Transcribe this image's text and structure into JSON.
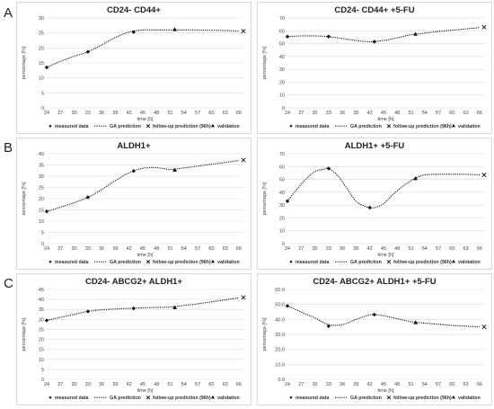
{
  "panels": [
    {
      "letter": "A"
    },
    {
      "letter": "B"
    },
    {
      "letter": "C"
    }
  ],
  "legend": {
    "measured": "measured data",
    "ga": "GA prediction",
    "followup": "follow-up prediction (96h)",
    "validation": "validation"
  },
  "chart_data": [
    {
      "type": "line",
      "title": "CD24- CD44+",
      "xlabel": "time [h]",
      "ylabel": "percentage [%]",
      "xticks": [
        "24",
        "27",
        "30",
        "33",
        "36",
        "39",
        "42",
        "45",
        "48",
        "51",
        "54",
        "57",
        "60",
        "63",
        "66"
      ],
      "yticks": [
        "0",
        "5",
        "10",
        "15",
        "20",
        "25",
        "30"
      ],
      "ylim": [
        0,
        30
      ],
      "curve_x": [
        24,
        27,
        30,
        33,
        36,
        39,
        42,
        45,
        48,
        51,
        54,
        57,
        60,
        63,
        66
      ],
      "curve_y": [
        13.5,
        15.5,
        17.2,
        18.7,
        21,
        23.5,
        25.3,
        26,
        26,
        26,
        26,
        26,
        25.9,
        25.8,
        25.6
      ],
      "measured": [
        [
          24,
          13.5
        ],
        [
          33,
          18.7
        ],
        [
          43,
          25.3
        ]
      ],
      "validation": [
        [
          52,
          26.2
        ]
      ],
      "followup": [
        [
          67,
          25.6
        ]
      ]
    },
    {
      "type": "line",
      "title": "CD24- CD44+ +5-FU",
      "xlabel": "time [h]",
      "ylabel": "percentage [%]",
      "xticks": [
        "24",
        "27",
        "30",
        "33",
        "36",
        "39",
        "42",
        "45",
        "48",
        "51",
        "54",
        "57",
        "60",
        "63",
        "66"
      ],
      "yticks": [
        "0",
        "10",
        "20",
        "30",
        "40",
        "50",
        "60",
        "70"
      ],
      "ylim": [
        0,
        70
      ],
      "curve_x": [
        24,
        27,
        30,
        33,
        36,
        39,
        42,
        45,
        48,
        51,
        54,
        57,
        60,
        63,
        66
      ],
      "curve_y": [
        55.5,
        56,
        56,
        55.5,
        54,
        52.5,
        51.5,
        52.5,
        54.5,
        57,
        58.2,
        59.5,
        60.5,
        61.5,
        62.5
      ],
      "measured": [
        [
          24,
          55.5
        ],
        [
          33,
          55.5
        ],
        [
          43,
          51.5
        ]
      ],
      "validation": [
        [
          52,
          57.5
        ]
      ],
      "followup": [
        [
          67,
          62.8
        ]
      ]
    },
    {
      "type": "line",
      "title": "ALDH1+",
      "xlabel": "time [h]",
      "ylabel": "percentage [%]",
      "xticks": [
        "24",
        "27",
        "30",
        "33",
        "36",
        "39",
        "42",
        "45",
        "48",
        "51",
        "54",
        "57",
        "60",
        "63",
        "66"
      ],
      "yticks": [
        "0",
        "5",
        "10",
        "15",
        "20",
        "25",
        "30",
        "35",
        "40"
      ],
      "ylim": [
        0,
        40
      ],
      "curve_x": [
        24,
        27,
        30,
        33,
        36,
        39,
        42,
        45,
        48,
        51,
        54,
        57,
        60,
        63,
        66
      ],
      "curve_y": [
        14.3,
        16.2,
        18.2,
        20.6,
        24,
        28,
        31.5,
        33.5,
        33.8,
        33,
        33.7,
        34.5,
        35.3,
        36.1,
        37
      ],
      "measured": [
        [
          24,
          14.3
        ],
        [
          33,
          20.6
        ],
        [
          43,
          32.3
        ]
      ],
      "validation": [
        [
          52,
          32.8
        ]
      ],
      "followup": [
        [
          67,
          37.2
        ]
      ]
    },
    {
      "type": "line",
      "title": "ALDH1+ +5-FU",
      "xlabel": "time [h]",
      "ylabel": "percentage [%]",
      "xticks": [
        "24",
        "27",
        "30",
        "33",
        "36",
        "39",
        "42",
        "45",
        "48",
        "51",
        "54",
        "57",
        "60",
        "63",
        "66"
      ],
      "yticks": [
        "0",
        "10",
        "20",
        "30",
        "40",
        "50",
        "60",
        "70"
      ],
      "ylim": [
        0,
        70
      ],
      "curve_x": [
        24,
        26,
        28,
        30,
        32,
        33,
        35,
        37,
        39,
        41,
        42,
        43,
        45,
        47,
        49,
        51,
        52,
        54,
        57,
        60,
        63,
        66
      ],
      "curve_y": [
        33,
        42,
        50,
        56,
        58,
        58.5,
        53,
        43,
        33,
        29,
        28,
        28,
        31,
        38,
        44,
        49,
        51,
        53.5,
        54,
        54,
        54,
        53.5
      ],
      "measured": [
        [
          24,
          33
        ],
        [
          33,
          58.5
        ],
        [
          42,
          28
        ]
      ],
      "validation": [
        [
          52,
          50.8
        ]
      ],
      "followup": [
        [
          67,
          53.5
        ]
      ]
    },
    {
      "type": "line",
      "title": "CD24- ABCG2+ ALDH1+",
      "xlabel": "time [h]",
      "ylabel": "percentage [%]",
      "xticks": [
        "24",
        "27",
        "30",
        "33",
        "36",
        "39",
        "42",
        "45",
        "48",
        "51",
        "54",
        "57",
        "60",
        "63",
        "66"
      ],
      "yticks": [
        "0",
        "5",
        "10",
        "15",
        "20",
        "25",
        "30",
        "35",
        "40",
        "45"
      ],
      "ylim": [
        0,
        45
      ],
      "curve_x": [
        24,
        27,
        30,
        33,
        36,
        39,
        42,
        45,
        48,
        51,
        54,
        57,
        60,
        63,
        66
      ],
      "curve_y": [
        29.5,
        31,
        32.5,
        34,
        34.8,
        35.2,
        35.5,
        35.8,
        36,
        36.2,
        37,
        37.8,
        38.8,
        39.8,
        40.8
      ],
      "measured": [
        [
          24,
          29.5
        ],
        [
          33,
          34
        ],
        [
          43,
          35.5
        ]
      ],
      "validation": [
        [
          52,
          36
        ]
      ],
      "followup": [
        [
          67,
          41
        ]
      ]
    },
    {
      "type": "line",
      "title": "CD24- ABCG2+ ALDH1+ +5-FU",
      "xlabel": "time [h]",
      "ylabel": "percentage [%]",
      "xticks": [
        "24",
        "27",
        "30",
        "33",
        "36",
        "39",
        "42",
        "45",
        "48",
        "51",
        "54",
        "57",
        "60",
        "63",
        "66"
      ],
      "yticks": [
        "0.0",
        "10.0",
        "20.0",
        "30.0",
        "40.0",
        "50.0",
        "60.0"
      ],
      "ylim": [
        0,
        60
      ],
      "curve_x": [
        24,
        27,
        30,
        33,
        36,
        39,
        42,
        43,
        45,
        48,
        51,
        54,
        57,
        60,
        63,
        66
      ],
      "curve_y": [
        49,
        45,
        41,
        36.5,
        36.5,
        40,
        43,
        43.2,
        42.5,
        40.5,
        38.5,
        37.5,
        36.8,
        36,
        35.5,
        35
      ],
      "measured": [
        [
          24,
          49
        ],
        [
          33,
          35.5
        ],
        [
          43,
          43.2
        ]
      ],
      "validation": [
        [
          52,
          38
        ]
      ],
      "followup": [
        [
          67,
          35
        ]
      ]
    }
  ]
}
